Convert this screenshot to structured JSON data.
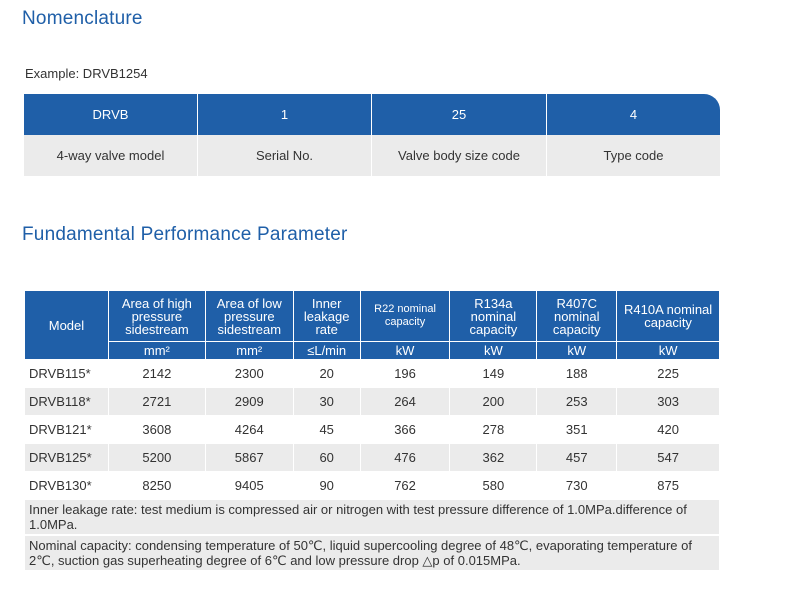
{
  "nomenclature": {
    "title": "Nomenclature",
    "example": "Example: DRVB1254",
    "header": [
      "DRVB",
      "1",
      "25",
      "4"
    ],
    "labels": [
      "4-way valve model",
      "Serial No.",
      "Valve body size code",
      "Type code"
    ]
  },
  "performance": {
    "title": "Fundamental Performance Parameter",
    "columns": [
      {
        "label": "Model",
        "unit": ""
      },
      {
        "label": "Area of high pressure sidestream",
        "unit": "mm²"
      },
      {
        "label": "Area of low pressure sidestream",
        "unit": "mm²"
      },
      {
        "label": "Inner leakage rate",
        "unit": "≤L/min"
      },
      {
        "label": "R22 nominal capacity",
        "unit": "kW"
      },
      {
        "label": "R134a nominal capacity",
        "unit": "kW"
      },
      {
        "label": "R407C nominal capacity",
        "unit": "kW"
      },
      {
        "label": "R410A nominal capacity",
        "unit": "kW"
      }
    ],
    "rows": [
      [
        "DRVB115*",
        "2142",
        "2300",
        "20",
        "196",
        "149",
        "188",
        "225"
      ],
      [
        "DRVB118*",
        "2721",
        "2909",
        "30",
        "264",
        "200",
        "253",
        "303"
      ],
      [
        "DRVB121*",
        "3608",
        "4264",
        "45",
        "366",
        "278",
        "351",
        "420"
      ],
      [
        "DRVB125*",
        "5200",
        "5867",
        "60",
        "476",
        "362",
        "457",
        "547"
      ],
      [
        "DRVB130*",
        "8250",
        "9405",
        "90",
        "762",
        "580",
        "730",
        "875"
      ]
    ],
    "notes": [
      "Inner leakage rate: test medium is compressed air or nitrogen with test pressure difference of 1.0MPa.difference of 1.0MPa.",
      "Nominal capacity: condensing temperature of 50℃, liquid supercooling degree of 48℃, evaporating temperature of 2℃, suction gas superheating degree of 6℃ and low pressure drop △p of 0.015MPa."
    ]
  },
  "colors": {
    "accent": "#1f5fa8",
    "row_alt": "#ebebeb"
  }
}
